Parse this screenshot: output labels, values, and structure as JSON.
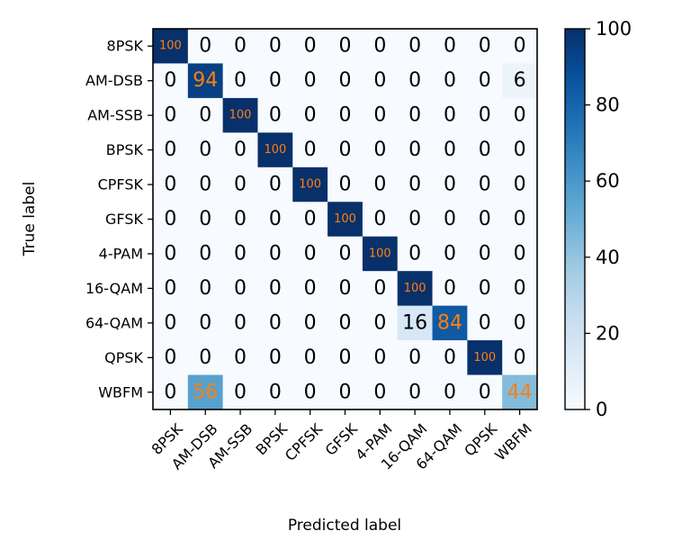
{
  "chart_data": {
    "type": "heatmap",
    "title": "",
    "xlabel": "Predicted label",
    "ylabel": "True label",
    "x_categories": [
      "8PSK",
      "AM-DSB",
      "AM-SSB",
      "BPSK",
      "CPFSK",
      "GFSK",
      "4-PAM",
      "16-QAM",
      "64-QAM",
      "QPSK",
      "WBFM"
    ],
    "y_categories": [
      "8PSK",
      "AM-DSB",
      "AM-SSB",
      "BPSK",
      "CPFSK",
      "GFSK",
      "4-PAM",
      "16-QAM",
      "64-QAM",
      "QPSK",
      "WBFM"
    ],
    "values": [
      [
        100,
        0,
        0,
        0,
        0,
        0,
        0,
        0,
        0,
        0,
        0
      ],
      [
        0,
        94,
        0,
        0,
        0,
        0,
        0,
        0,
        0,
        0,
        6
      ],
      [
        0,
        0,
        100,
        0,
        0,
        0,
        0,
        0,
        0,
        0,
        0
      ],
      [
        0,
        0,
        0,
        100,
        0,
        0,
        0,
        0,
        0,
        0,
        0
      ],
      [
        0,
        0,
        0,
        0,
        100,
        0,
        0,
        0,
        0,
        0,
        0
      ],
      [
        0,
        0,
        0,
        0,
        0,
        100,
        0,
        0,
        0,
        0,
        0
      ],
      [
        0,
        0,
        0,
        0,
        0,
        0,
        100,
        0,
        0,
        0,
        0
      ],
      [
        0,
        0,
        0,
        0,
        0,
        0,
        0,
        100,
        0,
        0,
        0
      ],
      [
        0,
        0,
        0,
        0,
        0,
        0,
        0,
        16,
        84,
        0,
        0
      ],
      [
        0,
        0,
        0,
        0,
        0,
        0,
        0,
        0,
        0,
        100,
        0
      ],
      [
        0,
        56,
        0,
        0,
        0,
        0,
        0,
        0,
        0,
        0,
        44
      ]
    ],
    "value_range": [
      0,
      100
    ],
    "colormap": "Blues",
    "colorbar_ticks": [
      0,
      20,
      40,
      60,
      80,
      100
    ],
    "high_value_text_color": "#ff7f0e",
    "low_value_text_color": "#000000",
    "grid": false
  }
}
